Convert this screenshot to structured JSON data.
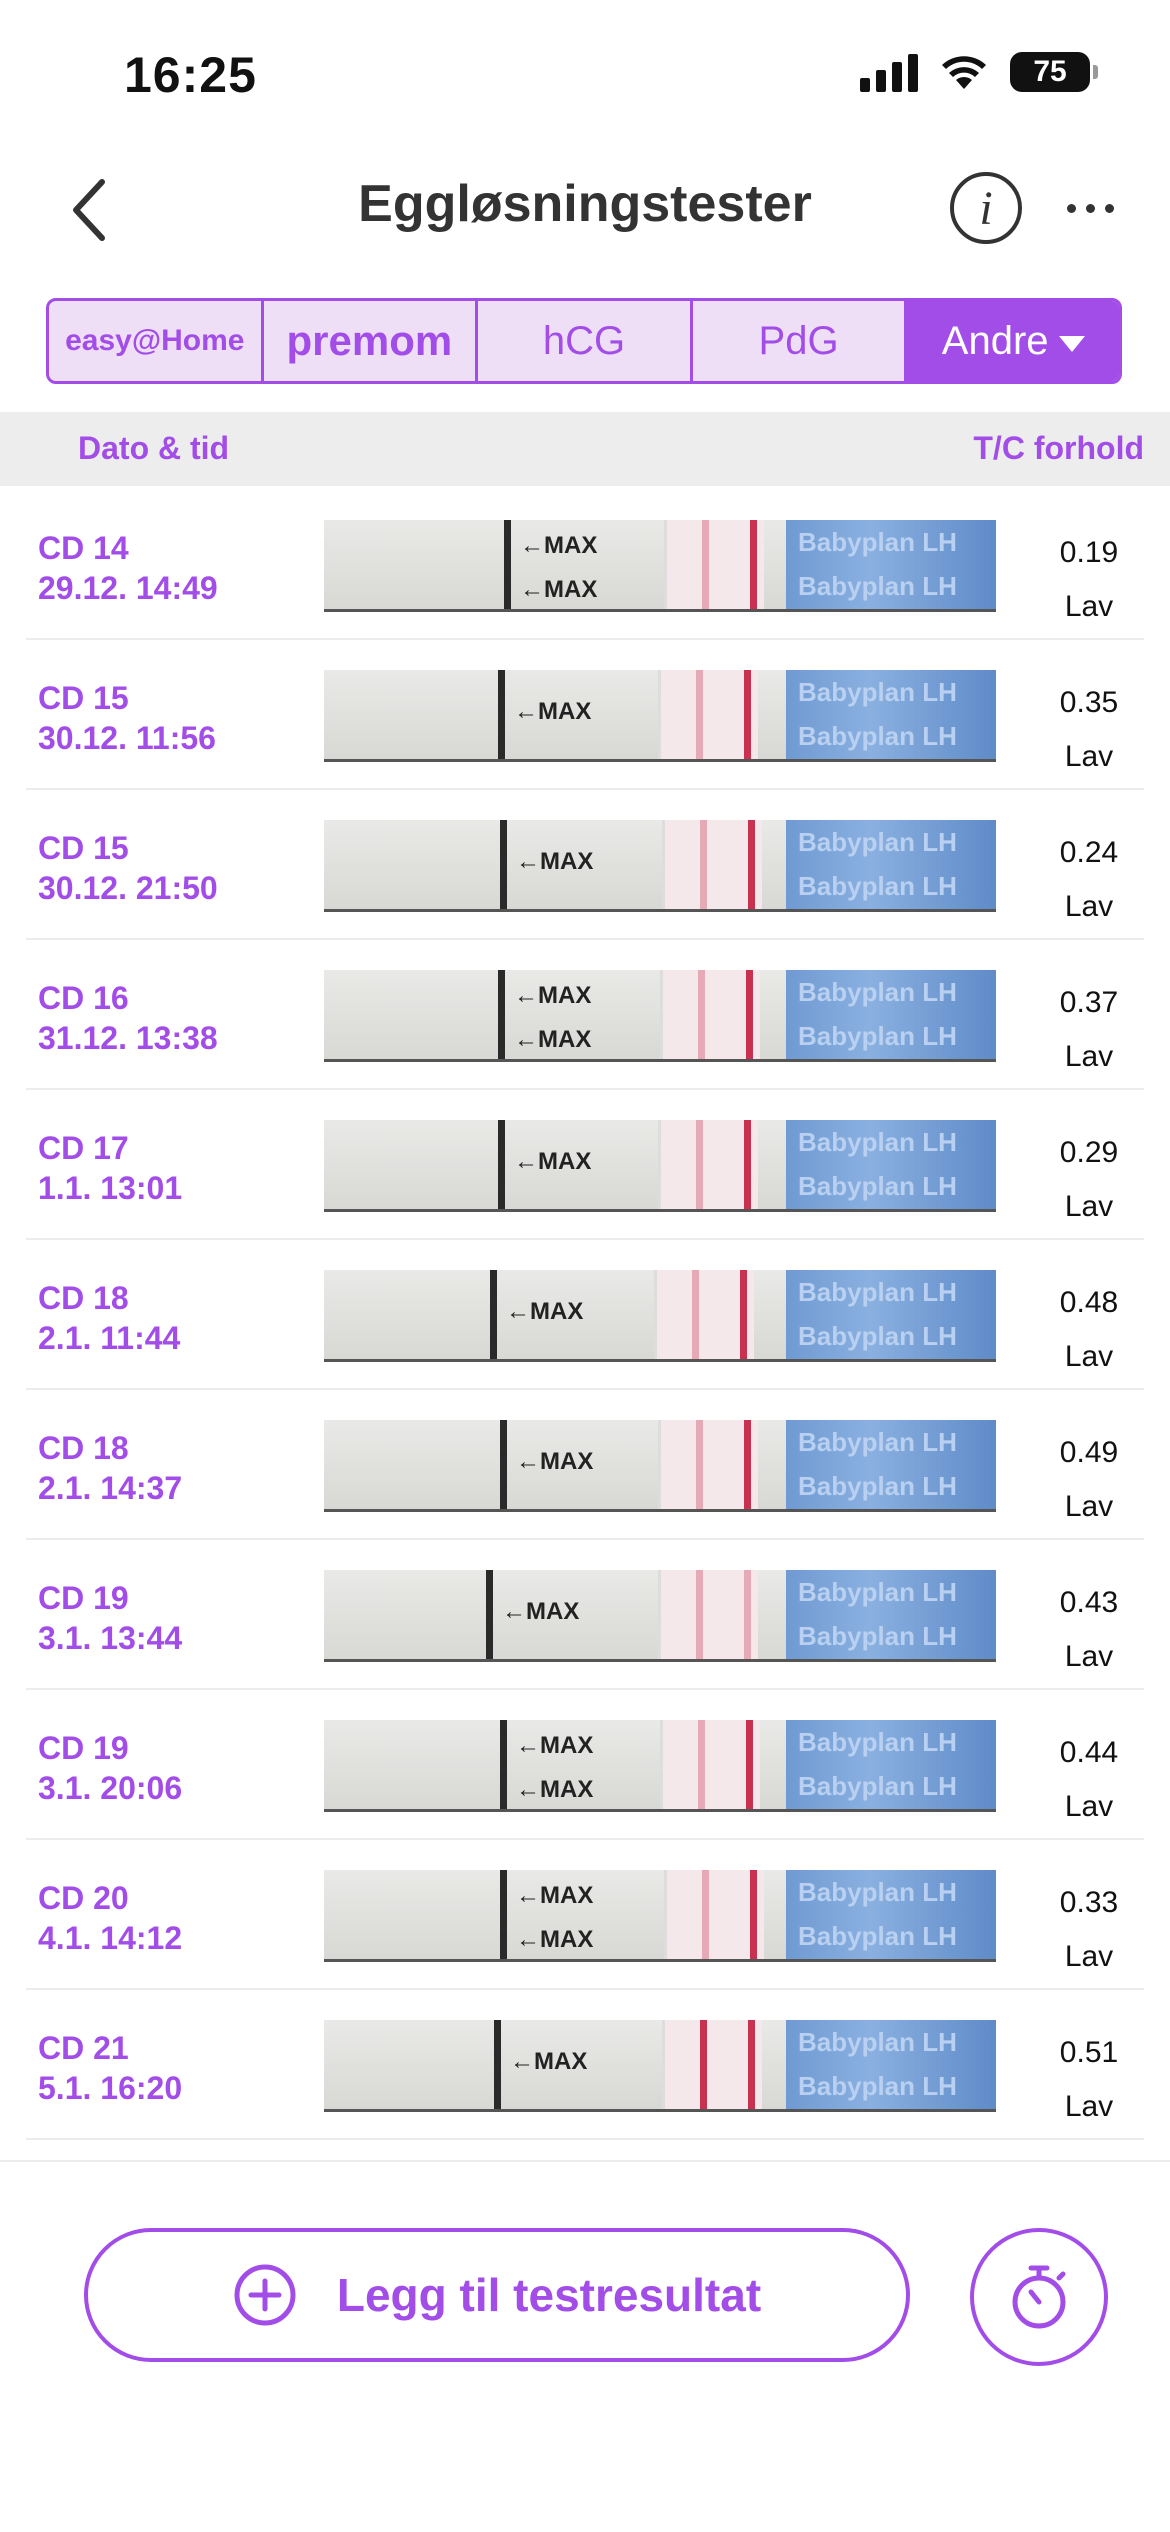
{
  "status_bar": {
    "time": "16:25",
    "battery": "75"
  },
  "nav": {
    "title": "Eggløsningstester"
  },
  "brand_tabs": [
    {
      "label": "easy@Home",
      "active": false
    },
    {
      "label": "premom",
      "active": false
    },
    {
      "label": "hCG",
      "active": false
    },
    {
      "label": "PdG",
      "active": false
    },
    {
      "label": "Andre",
      "active": true
    }
  ],
  "columns": {
    "date": "Dato & tid",
    "ratio": "T/C forhold"
  },
  "strip_text": {
    "max": "←MAX",
    "brand": "Babyplan LH"
  },
  "tests": [
    {
      "cd": "CD 14",
      "datetime": "29.12. 14:49",
      "ratio": "0.19",
      "level": "Lav"
    },
    {
      "cd": "CD 15",
      "datetime": "30.12. 11:56",
      "ratio": "0.35",
      "level": "Lav"
    },
    {
      "cd": "CD 15",
      "datetime": "30.12. 21:50",
      "ratio": "0.24",
      "level": "Lav"
    },
    {
      "cd": "CD 16",
      "datetime": "31.12. 13:38",
      "ratio": "0.37",
      "level": "Lav"
    },
    {
      "cd": "CD 17",
      "datetime": "1.1. 13:01",
      "ratio": "0.29",
      "level": "Lav"
    },
    {
      "cd": "CD 18",
      "datetime": "2.1. 11:44",
      "ratio": "0.48",
      "level": "Lav"
    },
    {
      "cd": "CD 18",
      "datetime": "2.1. 14:37",
      "ratio": "0.49",
      "level": "Lav"
    },
    {
      "cd": "CD 19",
      "datetime": "3.1. 13:44",
      "ratio": "0.43",
      "level": "Lav"
    },
    {
      "cd": "CD 19",
      "datetime": "3.1. 20:06",
      "ratio": "0.44",
      "level": "Lav"
    },
    {
      "cd": "CD 20",
      "datetime": "4.1. 14:12",
      "ratio": "0.33",
      "level": "Lav"
    },
    {
      "cd": "CD 21",
      "datetime": "5.1. 16:20",
      "ratio": "0.51",
      "level": "Lav"
    }
  ],
  "bottom": {
    "add_label": "Legg til testresultat"
  },
  "colors": {
    "accent": "#a34de8",
    "test_line": "#c93150",
    "strip_blue": "#6f9ad2"
  },
  "icons": [
    "back-chevron-icon",
    "info-icon",
    "more-icon",
    "plus-circle-icon",
    "stopwatch-icon"
  ]
}
